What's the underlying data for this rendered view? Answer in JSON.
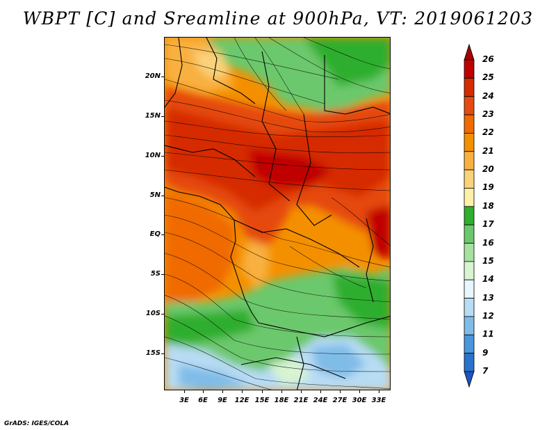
{
  "title": "WBPT [C] and Sreamline at 900hPa, VT: 2019061203",
  "y_axis": {
    "labels": [
      "20N",
      "15N",
      "10N",
      "5N",
      "EQ",
      "5S",
      "10S",
      "15S"
    ]
  },
  "x_axis": {
    "labels": [
      "3E",
      "6E",
      "9E",
      "12E",
      "15E",
      "18E",
      "21E",
      "24E",
      "27E",
      "30E",
      "33E"
    ]
  },
  "colorbar": {
    "labels": [
      "26",
      "25",
      "24",
      "23",
      "22",
      "21",
      "20",
      "19",
      "18",
      "17",
      "16",
      "15",
      "14",
      "13",
      "12",
      "11",
      "9",
      "7"
    ],
    "colors": [
      "#a50000",
      "#c00000",
      "#d62a00",
      "#e54a10",
      "#f06a00",
      "#f49000",
      "#f8b040",
      "#fad27a",
      "#fdf0a8",
      "#2fae2f",
      "#6cc86c",
      "#a8e0a0",
      "#d8f4d0",
      "#e8f6ff",
      "#b8dcf4",
      "#80bce8",
      "#4a96dc",
      "#2a72cc",
      "#1a56c0"
    ]
  },
  "credit": "GrADS: IGES/COLA"
}
